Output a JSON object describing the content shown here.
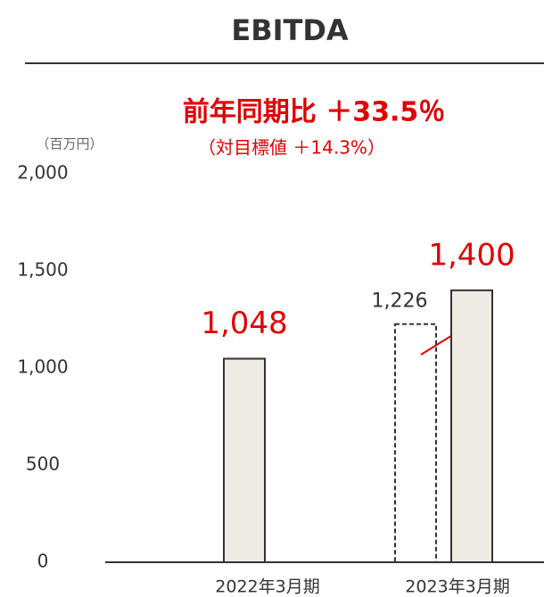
{
  "chart_data": {
    "type": "bar",
    "title": "EBITDA",
    "annotations": [
      "前年同期比 ＋33.5％",
      "（対目標値 ＋14.3%）"
    ],
    "y_unit": "（百万円）",
    "categories": [
      "2022年3月期",
      "2023年3月期"
    ],
    "series": [
      {
        "color": "#eeebe4",
        "values": [
          1048,
          1400
        ],
        "value_labels": [
          "1,048",
          "1,400"
        ],
        "label_color": "#e00000"
      },
      {
        "color": "none",
        "style": "dashed",
        "values": [
          null,
          1226
        ],
        "value_labels": [
          null,
          "1,226"
        ],
        "label_color": "#333333"
      }
    ],
    "ylim": [
      0,
      2000
    ],
    "yticks": [
      0,
      500,
      {
        "value": 1000,
        "label": "1,000"
      },
      {
        "value": 1500,
        "label": "1,500"
      },
      {
        "value": 2000,
        "label": "2,000"
      }
    ],
    "grid": false
  }
}
